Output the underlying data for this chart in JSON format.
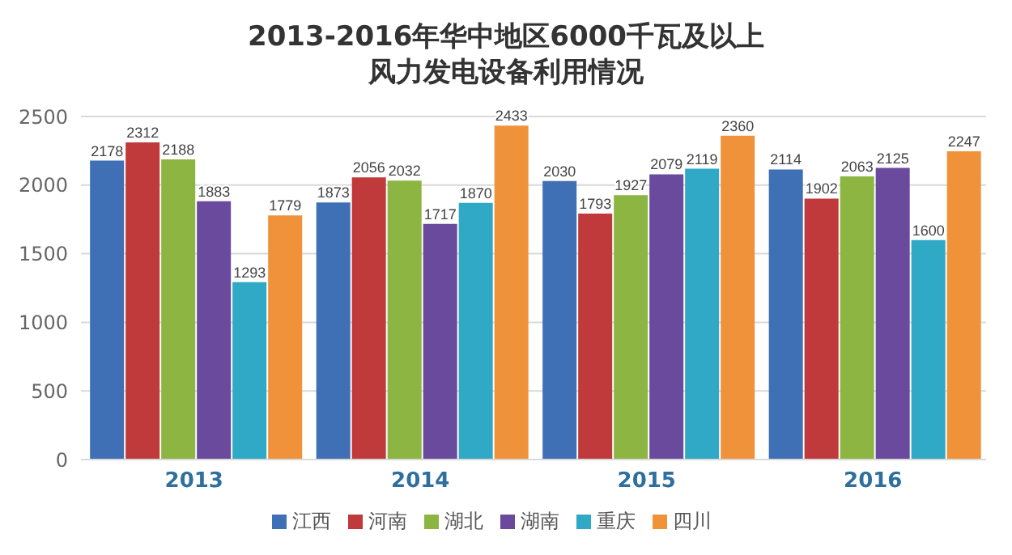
{
  "chart_data": {
    "type": "bar",
    "title": "2013-2016年华中地区6000千瓦及以上风力发电设备利用情况",
    "categories": [
      "2013",
      "2014",
      "2015",
      "2016"
    ],
    "series": [
      {
        "name": "江西",
        "color": "#3f6fb5",
        "values": [
          2178,
          1873,
          2030,
          2114
        ]
      },
      {
        "name": "河南",
        "color": "#c0393b",
        "values": [
          2312,
          2056,
          1793,
          1902
        ]
      },
      {
        "name": "湖北",
        "color": "#8db542",
        "values": [
          2188,
          2032,
          1927,
          2063
        ]
      },
      {
        "name": "湖南",
        "color": "#6a4a9c",
        "values": [
          1883,
          1717,
          2079,
          2125
        ]
      },
      {
        "name": "重庆",
        "color": "#2fa9c6",
        "values": [
          1293,
          1870,
          2119,
          1600
        ]
      },
      {
        "name": "四川",
        "color": "#f0923a",
        "values": [
          1779,
          2433,
          2360,
          2247
        ]
      }
    ],
    "ylim": [
      0,
      2500
    ],
    "yticks": [
      0,
      500,
      1000,
      1500,
      2000,
      2500
    ],
    "grid": "y",
    "legend": "bottom",
    "data_labels": true
  }
}
